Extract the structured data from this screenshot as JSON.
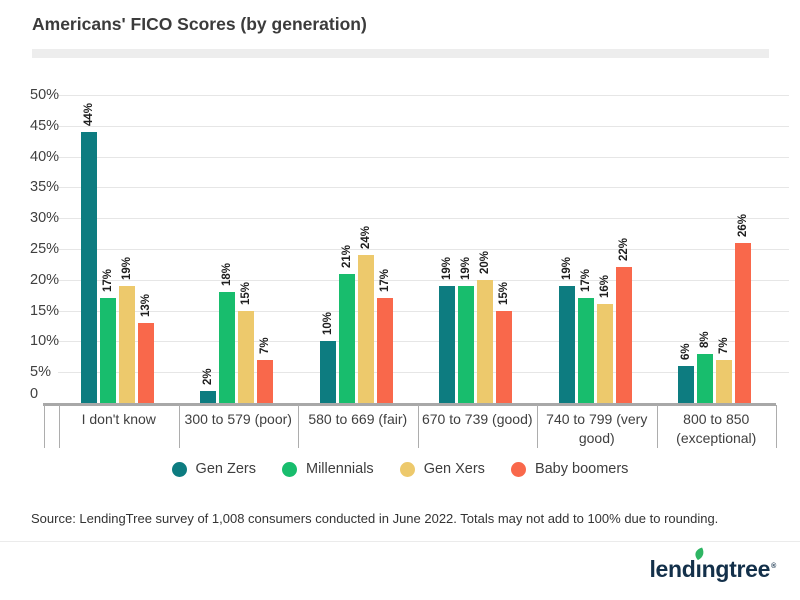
{
  "title": "Americans' FICO Scores (by generation)",
  "chart_data": {
    "type": "bar",
    "title": "Americans' FICO Scores (by generation)",
    "categories": [
      "I don't know",
      "300 to 579 (poor)",
      "580 to 669 (fair)",
      "670 to 739 (good)",
      "740 to 799 (very good)",
      "800 to 850 (exceptional)"
    ],
    "series": [
      {
        "name": "Gen Zers",
        "color": "#0d7c80",
        "values": [
          44,
          2,
          10,
          19,
          19,
          6
        ]
      },
      {
        "name": "Millennials",
        "color": "#18bd6d",
        "values": [
          17,
          18,
          21,
          19,
          17,
          8
        ]
      },
      {
        "name": "Gen Xers",
        "color": "#edc96c",
        "values": [
          19,
          15,
          24,
          20,
          16,
          7
        ]
      },
      {
        "name": "Baby boomers",
        "color": "#f9684b",
        "values": [
          13,
          7,
          17,
          15,
          22,
          26
        ]
      }
    ],
    "value_suffix": "%",
    "data_labels_rotated": true,
    "y_ticks": [
      "50%",
      "45%",
      "40%",
      "35%",
      "30%",
      "25%",
      "20%",
      "15%",
      "10%",
      "5%",
      "0"
    ],
    "ylim": [
      0,
      50
    ],
    "grid": true,
    "legend_position": "bottom"
  },
  "source_note": "Source: LendingTree survey of 1,008 consumers conducted in June 2022. Totals may not add to 100% due to rounding.",
  "logo": {
    "text": "lendingtree",
    "registered": "®",
    "leaf_color": "#2eb563"
  }
}
